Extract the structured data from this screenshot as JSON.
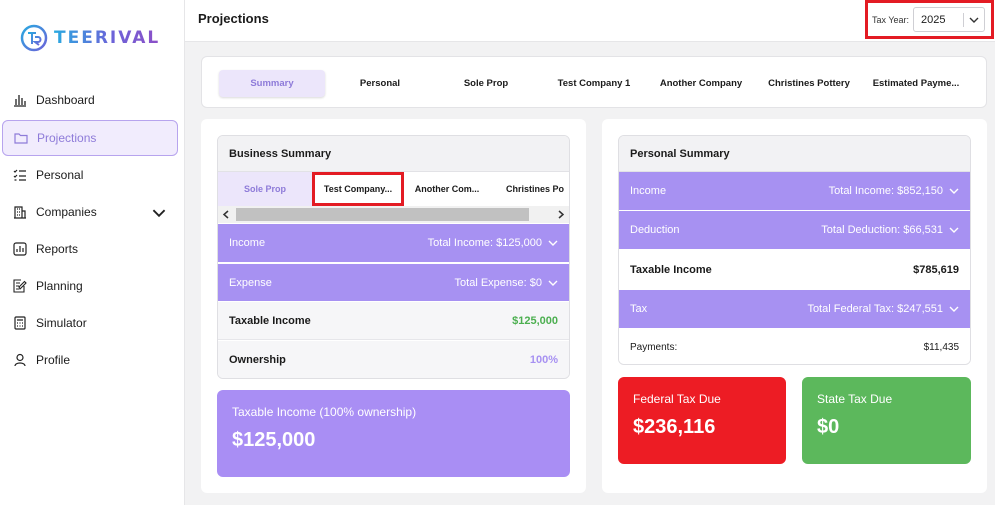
{
  "brand": {
    "name": "TEERIVAL"
  },
  "sidebar": {
    "items": [
      {
        "label": "Dashboard"
      },
      {
        "label": "Projections"
      },
      {
        "label": "Personal"
      },
      {
        "label": "Companies"
      },
      {
        "label": "Reports"
      },
      {
        "label": "Planning"
      },
      {
        "label": "Simulator"
      },
      {
        "label": "Profile"
      }
    ]
  },
  "header": {
    "title": "Projections",
    "tax_year_label": "Tax Year:",
    "tax_year_value": "2025"
  },
  "tabs": [
    "Summary",
    "Personal",
    "Sole Prop",
    "Test Company 1",
    "Another Company",
    "Christines Pottery",
    "Estimated Payme..."
  ],
  "business_summary": {
    "title": "Business Summary",
    "subtabs": [
      "Sole Prop",
      "Test Company...",
      "Another Com...",
      "Christines Po"
    ],
    "income_label": "Income",
    "income_total": "Total Income: $125,000",
    "expense_label": "Expense",
    "expense_total": "Total Expense: $0",
    "taxable_label": "Taxable Income",
    "taxable_value": "$125,000",
    "ownership_label": "Ownership",
    "ownership_value": "100%",
    "card_label": "Taxable Income (100% ownership)",
    "card_value": "$125,000"
  },
  "personal_summary": {
    "title": "Personal Summary",
    "income_label": "Income",
    "income_total": "Total Income: $852,150",
    "deduction_label": "Deduction",
    "deduction_total": "Total Deduction: $66,531",
    "taxable_label": "Taxable Income",
    "taxable_value": "$785,619",
    "tax_label": "Tax",
    "tax_total": "Total Federal Tax: $247,551",
    "payments_label": "Payments:",
    "payments_value": "$11,435"
  },
  "federal": {
    "label": "Federal Tax Due",
    "value": "$236,116"
  },
  "state": {
    "label": "State Tax Due",
    "value": "$0"
  },
  "colors": {
    "accent": "#a791f2",
    "federal": "#ed1c24",
    "state": "#5cb85c",
    "highlight": "#e31b23"
  }
}
